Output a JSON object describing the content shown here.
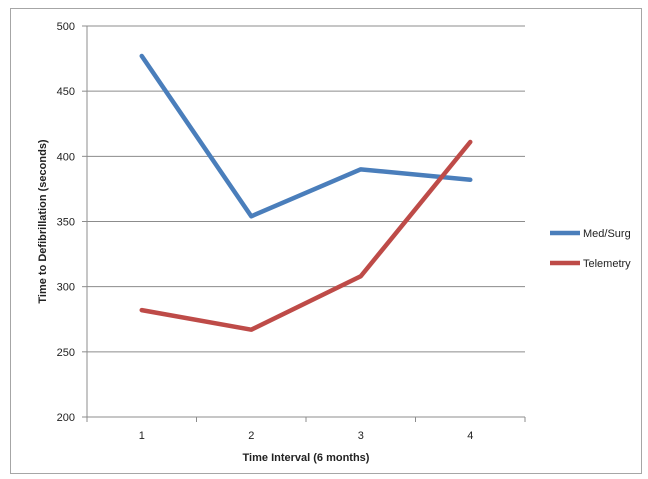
{
  "chart_data": {
    "type": "line",
    "title": "",
    "xlabel": "Time Interval (6 months)",
    "ylabel": "Time to Defibrillation  (seconds)",
    "categories": [
      "1",
      "2",
      "3",
      "4"
    ],
    "ylim": [
      200,
      500
    ],
    "yticks": [
      200,
      250,
      300,
      350,
      400,
      450,
      500
    ],
    "grid": "horizontal",
    "legend_position": "right",
    "series": [
      {
        "name": "Med/Surg",
        "values": [
          477,
          354,
          390,
          382
        ],
        "color": "#4a7ebb"
      },
      {
        "name": "Telemetry",
        "values": [
          282,
          267,
          308,
          411
        ],
        "color": "#be4b48"
      }
    ]
  }
}
